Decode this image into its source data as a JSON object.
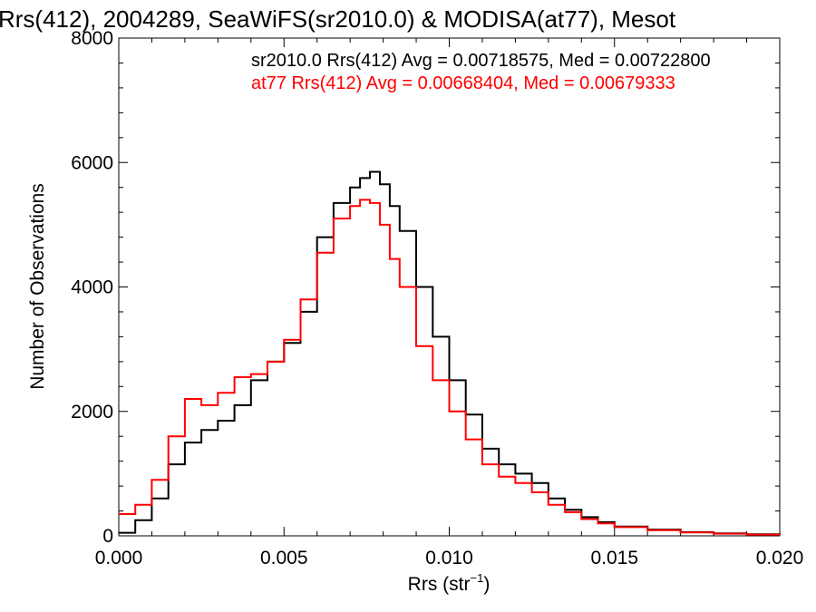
{
  "chart_data": {
    "type": "line",
    "title": "Rrs(412), 2004289, SeaWiFS(sr2010.0) & MODISA(at77), Mesot",
    "xlabel_main": "Rrs (str",
    "xlabel_sup": "−1",
    "xlabel_close": ")",
    "ylabel": "Number of Observations",
    "xlim": [
      0.0,
      0.02
    ],
    "ylim": [
      0,
      8000
    ],
    "x_tick_labels": [
      "0.000",
      "0.005",
      "0.010",
      "0.015",
      "0.020"
    ],
    "x_tick_values": [
      0.0,
      0.005,
      0.01,
      0.015,
      0.02
    ],
    "y_tick_labels": [
      "0",
      "2000",
      "4000",
      "6000",
      "8000"
    ],
    "y_tick_values": [
      0,
      2000,
      4000,
      6000,
      8000
    ],
    "series": [
      {
        "label": "sr2010.0 Rrs(412) Avg = 0.00718575, Med = 0.00722800",
        "color": "#000000",
        "x": [
          0.0,
          0.0005,
          0.001,
          0.0015,
          0.002,
          0.0025,
          0.003,
          0.0035,
          0.004,
          0.0045,
          0.005,
          0.0055,
          0.006,
          0.0065,
          0.007,
          0.0073,
          0.0076,
          0.0079,
          0.0082,
          0.0085,
          0.009,
          0.0095,
          0.01,
          0.0105,
          0.011,
          0.0115,
          0.012,
          0.0125,
          0.013,
          0.0135,
          0.014,
          0.0145,
          0.015,
          0.016,
          0.017,
          0.018,
          0.019,
          0.02
        ],
        "y": [
          50,
          250,
          600,
          1150,
          1500,
          1700,
          1850,
          2100,
          2500,
          2800,
          3100,
          3600,
          4800,
          5350,
          5600,
          5750,
          5850,
          5650,
          5300,
          4900,
          4000,
          3200,
          2500,
          1950,
          1400,
          1150,
          1000,
          850,
          600,
          420,
          300,
          220,
          150,
          100,
          60,
          40,
          25,
          15
        ]
      },
      {
        "label": "at77 Rrs(412) Avg = 0.00668404, Med = 0.00679333",
        "color": "#ff0000",
        "x": [
          0.0,
          0.0005,
          0.001,
          0.0015,
          0.002,
          0.0025,
          0.003,
          0.0035,
          0.004,
          0.0045,
          0.005,
          0.0055,
          0.006,
          0.0065,
          0.007,
          0.0073,
          0.0076,
          0.0079,
          0.0082,
          0.0085,
          0.009,
          0.0095,
          0.01,
          0.0105,
          0.011,
          0.0115,
          0.012,
          0.0125,
          0.013,
          0.0135,
          0.014,
          0.0145,
          0.015,
          0.016,
          0.017,
          0.018,
          0.019,
          0.02
        ],
        "y": [
          350,
          500,
          900,
          1600,
          2200,
          2100,
          2300,
          2550,
          2600,
          2800,
          3150,
          3800,
          4550,
          5100,
          5300,
          5400,
          5350,
          5000,
          4450,
          4000,
          3050,
          2500,
          2000,
          1550,
          1150,
          950,
          850,
          700,
          500,
          380,
          270,
          200,
          140,
          90,
          55,
          35,
          20,
          10
        ]
      }
    ]
  }
}
